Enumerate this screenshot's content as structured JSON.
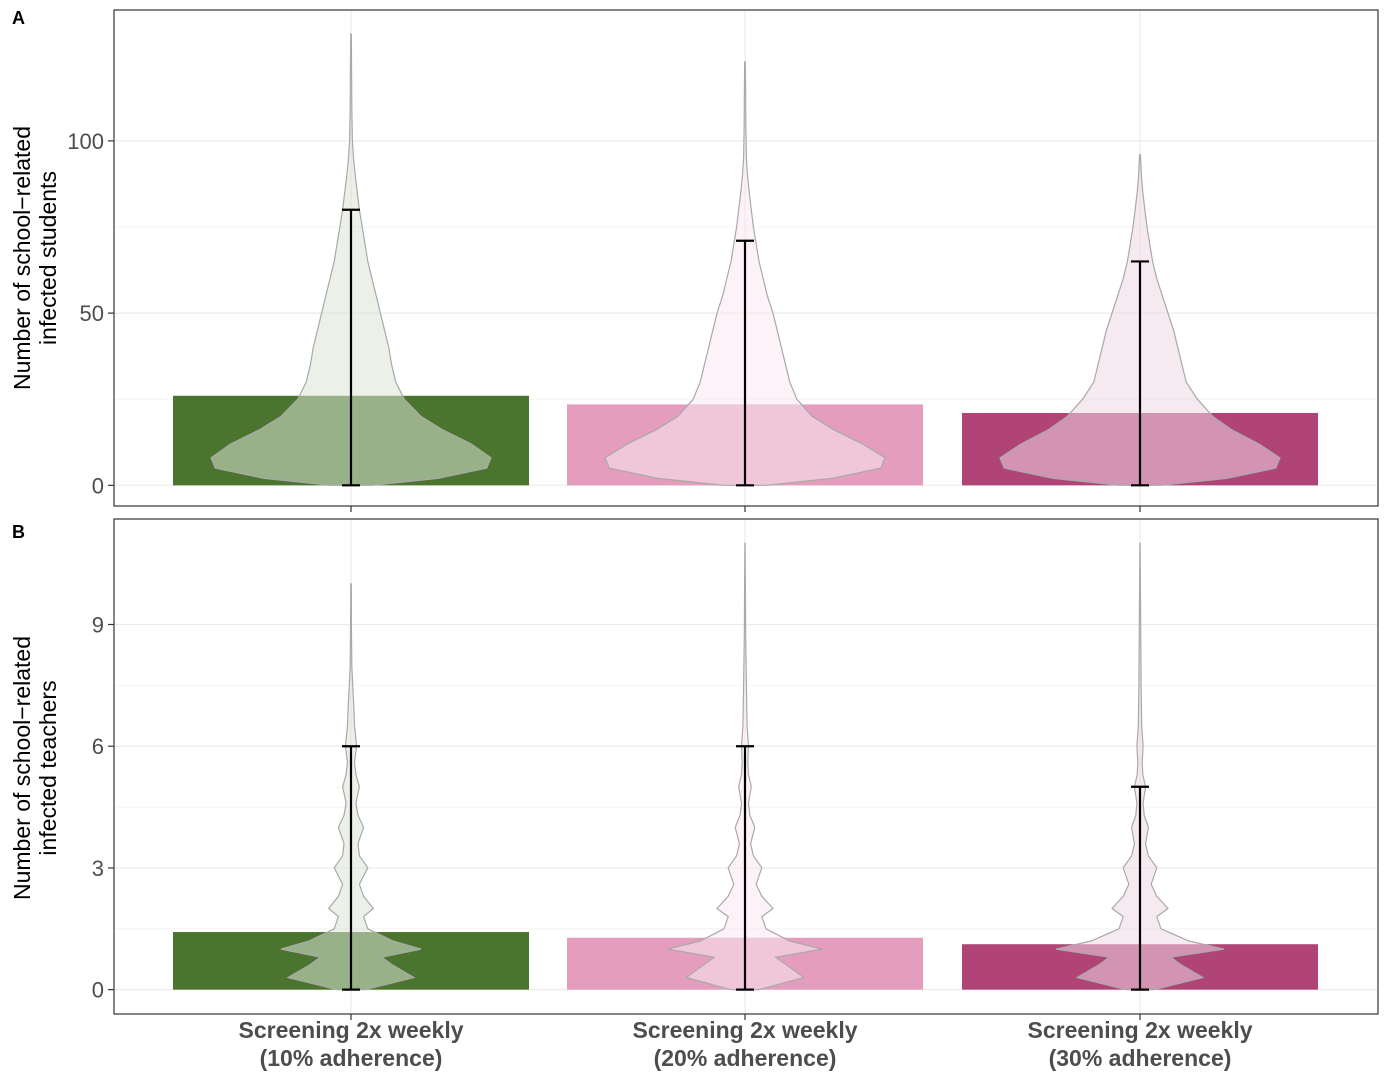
{
  "chart_data": [
    {
      "panel": "A",
      "type": "bar",
      "ylabel_lines": [
        "Number of school−related",
        "infected students"
      ],
      "categories": [
        "Screening 2x weekly (10% adherence)",
        "Screening 2x weekly (20% adherence)",
        "Screening 2x weekly (30% adherence)"
      ],
      "category_labels": [
        [
          "Screening 2x weekly",
          "(10% adherence)"
        ],
        [
          "Screening 2x weekly",
          "(20% adherence)"
        ],
        [
          "Screening 2x weekly",
          "(30% adherence)"
        ]
      ],
      "values": [
        26,
        23.5,
        21
      ],
      "colors": [
        "#4b742e",
        "#e49dbd",
        "#b04476"
      ],
      "violin_colors": [
        "#dbe4d5",
        "#f9e8f0",
        "#efd7e3"
      ],
      "error_bars": [
        [
          0,
          80
        ],
        [
          0,
          71
        ],
        [
          0,
          65
        ]
      ],
      "violins": [
        {
          "max": 131,
          "profile": [
            [
              0,
              0.15
            ],
            [
              2,
              0.62
            ],
            [
              5,
              0.97
            ],
            [
              8,
              1.0
            ],
            [
              12,
              0.86
            ],
            [
              16,
              0.66
            ],
            [
              20,
              0.5
            ],
            [
              25,
              0.38
            ],
            [
              30,
              0.32
            ],
            [
              35,
              0.29
            ],
            [
              40,
              0.27
            ],
            [
              45,
              0.24
            ],
            [
              50,
              0.21
            ],
            [
              55,
              0.18
            ],
            [
              60,
              0.15
            ],
            [
              65,
              0.12
            ],
            [
              70,
              0.1
            ],
            [
              75,
              0.08
            ],
            [
              80,
              0.06
            ],
            [
              85,
              0.045
            ],
            [
              90,
              0.03
            ],
            [
              95,
              0.018
            ],
            [
              100,
              0.01
            ],
            [
              110,
              0.006
            ],
            [
              120,
              0.004
            ],
            [
              131,
              0.002
            ]
          ]
        },
        {
          "max": 123,
          "profile": [
            [
              0,
              0.15
            ],
            [
              2,
              0.62
            ],
            [
              5,
              0.97
            ],
            [
              8,
              1.0
            ],
            [
              12,
              0.84
            ],
            [
              16,
              0.64
            ],
            [
              20,
              0.48
            ],
            [
              25,
              0.37
            ],
            [
              30,
              0.32
            ],
            [
              35,
              0.29
            ],
            [
              40,
              0.26
            ],
            [
              45,
              0.23
            ],
            [
              50,
              0.2
            ],
            [
              55,
              0.16
            ],
            [
              60,
              0.13
            ],
            [
              65,
              0.1
            ],
            [
              70,
              0.08
            ],
            [
              75,
              0.06
            ],
            [
              80,
              0.045
            ],
            [
              85,
              0.03
            ],
            [
              90,
              0.018
            ],
            [
              95,
              0.01
            ],
            [
              105,
              0.006
            ],
            [
              115,
              0.004
            ],
            [
              123,
              0.002
            ]
          ]
        },
        {
          "max": 96,
          "profile": [
            [
              0,
              0.15
            ],
            [
              2,
              0.62
            ],
            [
              5,
              0.97
            ],
            [
              8,
              1.0
            ],
            [
              12,
              0.85
            ],
            [
              16,
              0.66
            ],
            [
              20,
              0.52
            ],
            [
              25,
              0.41
            ],
            [
              30,
              0.33
            ],
            [
              35,
              0.3
            ],
            [
              40,
              0.27
            ],
            [
              45,
              0.24
            ],
            [
              50,
              0.2
            ],
            [
              55,
              0.16
            ],
            [
              60,
              0.12
            ],
            [
              65,
              0.09
            ],
            [
              70,
              0.07
            ],
            [
              75,
              0.05
            ],
            [
              80,
              0.035
            ],
            [
              85,
              0.02
            ],
            [
              90,
              0.01
            ],
            [
              96,
              0.003
            ]
          ]
        }
      ],
      "ylim": [
        -6,
        138
      ],
      "yticks": [
        0,
        50,
        100
      ],
      "grid": true
    },
    {
      "panel": "B",
      "type": "bar",
      "ylabel_lines": [
        "Number of school−related",
        "infected teachers"
      ],
      "categories": [
        "Screening 2x weekly (10% adherence)",
        "Screening 2x weekly (20% adherence)",
        "Screening 2x weekly (30% adherence)"
      ],
      "category_labels": [
        [
          "Screening 2x weekly",
          "(10% adherence)"
        ],
        [
          "Screening 2x weekly",
          "(20% adherence)"
        ],
        [
          "Screening 2x weekly",
          "(30% adherence)"
        ]
      ],
      "values": [
        1.42,
        1.28,
        1.12
      ],
      "colors": [
        "#4b742e",
        "#e49dbd",
        "#b04476"
      ],
      "violin_colors": [
        "#dbe4d5",
        "#f9e8f0",
        "#efd7e3"
      ],
      "error_bars": [
        [
          0,
          6
        ],
        [
          0,
          6
        ],
        [
          0,
          5
        ]
      ],
      "violins": [
        {
          "max": 10,
          "profile": [
            [
              0,
              0.1
            ],
            [
              0.3,
              0.45
            ],
            [
              0.6,
              0.3
            ],
            [
              0.8,
              0.22
            ],
            [
              1,
              0.5
            ],
            [
              1.2,
              0.3
            ],
            [
              1.5,
              0.12
            ],
            [
              1.8,
              0.09
            ],
            [
              2,
              0.16
            ],
            [
              2.3,
              0.09
            ],
            [
              2.6,
              0.06
            ],
            [
              3,
              0.12
            ],
            [
              3.3,
              0.06
            ],
            [
              3.6,
              0.05
            ],
            [
              4,
              0.09
            ],
            [
              4.3,
              0.05
            ],
            [
              4.6,
              0.035
            ],
            [
              5,
              0.06
            ],
            [
              5.3,
              0.035
            ],
            [
              5.6,
              0.025
            ],
            [
              6,
              0.04
            ],
            [
              6.5,
              0.025
            ],
            [
              7,
              0.02
            ],
            [
              7.5,
              0.012
            ],
            [
              8,
              0.006
            ],
            [
              9,
              0.003
            ],
            [
              10,
              0.002
            ]
          ]
        },
        {
          "max": 11,
          "profile": [
            [
              0,
              0.1
            ],
            [
              0.3,
              0.42
            ],
            [
              0.6,
              0.3
            ],
            [
              0.8,
              0.22
            ],
            [
              1,
              0.55
            ],
            [
              1.2,
              0.32
            ],
            [
              1.5,
              0.15
            ],
            [
              1.8,
              0.12
            ],
            [
              2,
              0.2
            ],
            [
              2.3,
              0.12
            ],
            [
              2.6,
              0.08
            ],
            [
              3,
              0.12
            ],
            [
              3.3,
              0.06
            ],
            [
              3.6,
              0.04
            ],
            [
              4,
              0.07
            ],
            [
              4.3,
              0.035
            ],
            [
              4.6,
              0.025
            ],
            [
              5,
              0.045
            ],
            [
              5.3,
              0.025
            ],
            [
              5.6,
              0.02
            ],
            [
              6,
              0.025
            ],
            [
              6.5,
              0.015
            ],
            [
              7,
              0.012
            ],
            [
              7.5,
              0.01
            ],
            [
              8,
              0.008
            ],
            [
              8.5,
              0.006
            ],
            [
              9,
              0.004
            ],
            [
              10,
              0.003
            ],
            [
              11,
              0.001
            ]
          ]
        },
        {
          "max": 11,
          "profile": [
            [
              0,
              0.1
            ],
            [
              0.3,
              0.45
            ],
            [
              0.6,
              0.3
            ],
            [
              0.8,
              0.22
            ],
            [
              1,
              0.6
            ],
            [
              1.2,
              0.35
            ],
            [
              1.5,
              0.15
            ],
            [
              1.8,
              0.12
            ],
            [
              2,
              0.2
            ],
            [
              2.3,
              0.12
            ],
            [
              2.6,
              0.08
            ],
            [
              3,
              0.12
            ],
            [
              3.3,
              0.06
            ],
            [
              3.6,
              0.04
            ],
            [
              4,
              0.06
            ],
            [
              4.3,
              0.03
            ],
            [
              4.6,
              0.022
            ],
            [
              5,
              0.04
            ],
            [
              5.3,
              0.02
            ],
            [
              5.6,
              0.016
            ],
            [
              6,
              0.022
            ],
            [
              6.5,
              0.012
            ],
            [
              7,
              0.01
            ],
            [
              7.5,
              0.008
            ],
            [
              8,
              0.007
            ],
            [
              8.5,
              0.006
            ],
            [
              9,
              0.005
            ],
            [
              10,
              0.003
            ],
            [
              11,
              0.001
            ]
          ]
        }
      ],
      "ylim": [
        -0.6,
        11.6
      ],
      "yticks": [
        0,
        3,
        6,
        9
      ],
      "grid": true
    }
  ]
}
